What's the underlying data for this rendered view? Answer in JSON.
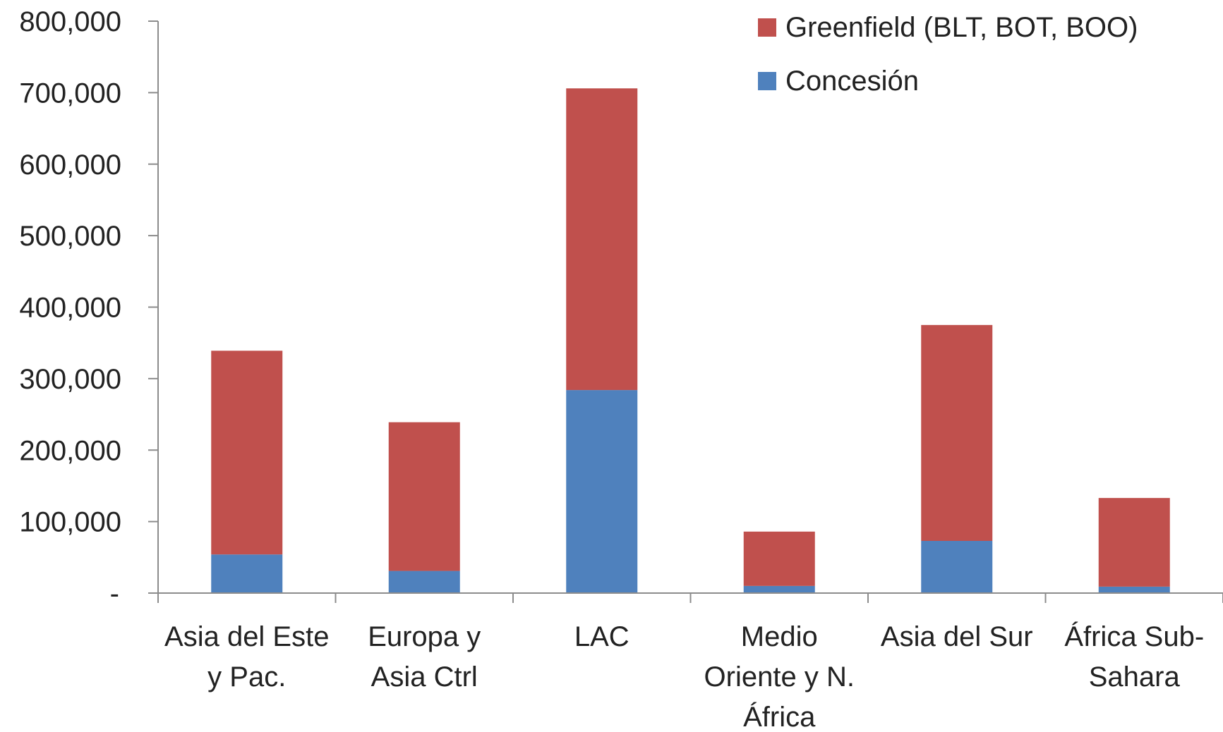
{
  "chart_data": {
    "type": "bar",
    "stacked": true,
    "title": "",
    "xlabel": "",
    "ylabel": "",
    "categories": [
      [
        "Asia del Este",
        "y Pac."
      ],
      [
        "Europa y",
        "Asia Ctrl"
      ],
      [
        "LAC"
      ],
      [
        "Medio",
        "Oriente y N.",
        "África"
      ],
      [
        "Asia del Sur"
      ],
      [
        "África Sub-",
        "Sahara"
      ]
    ],
    "series": [
      {
        "name": "Concesión",
        "color": "#4f81bd",
        "values": [
          54000,
          31000,
          284000,
          10000,
          73000,
          9000
        ]
      },
      {
        "name": "Greenfield (BLT, BOT, BOO)",
        "color": "#c0504d",
        "values": [
          285000,
          208000,
          422000,
          76000,
          302000,
          124000
        ]
      }
    ],
    "ylim": [
      0,
      800000
    ],
    "yticks": [
      0,
      100000,
      200000,
      300000,
      400000,
      500000,
      600000,
      700000,
      800000
    ],
    "ytick_labels": [
      "-",
      "100,000",
      "200,000",
      "300,000",
      "400,000",
      "500,000",
      "600,000",
      "700,000",
      "800,000"
    ],
    "grid": false,
    "legend": {
      "position": "top-right",
      "order": [
        "Greenfield (BLT, BOT, BOO)",
        "Concesión"
      ]
    }
  }
}
